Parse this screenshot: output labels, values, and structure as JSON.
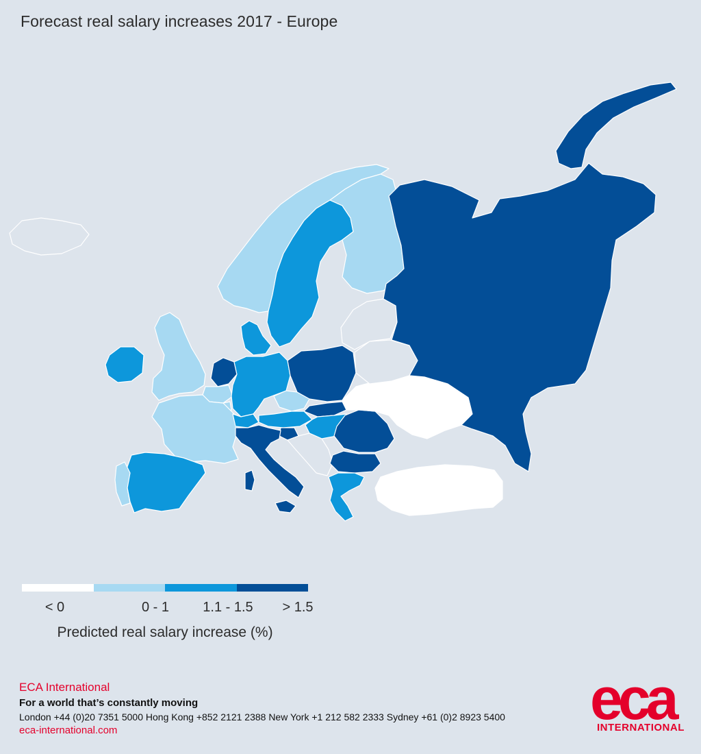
{
  "title": "Forecast real salary increases 2017 - Europe",
  "colors": {
    "background": "#dde4ec",
    "lt0": "#ffffff",
    "0to1": "#a7d9f2",
    "1.1to1.5": "#0d97db",
    "gt1.5": "#034e97",
    "nodata": "#dde4ec",
    "accent": "#e4002b"
  },
  "legend": {
    "caption": "Predicted real salary increase (%)",
    "classes": [
      {
        "label": "< 0",
        "color": "#ffffff"
      },
      {
        "label": "0 - 1",
        "color": "#a7d9f2"
      },
      {
        "label": "1.1 - 1.5",
        "color": "#0d97db"
      },
      {
        "label": "> 1.5",
        "color": "#034e97"
      }
    ]
  },
  "regions": [
    {
      "name": "Iceland",
      "category": "nodata"
    },
    {
      "name": "Norway",
      "category": "0to1"
    },
    {
      "name": "Sweden",
      "category": "1.1to1.5"
    },
    {
      "name": "Finland",
      "category": "0to1"
    },
    {
      "name": "Denmark",
      "category": "1.1to1.5"
    },
    {
      "name": "United Kingdom",
      "category": "0to1"
    },
    {
      "name": "Ireland",
      "category": "1.1to1.5"
    },
    {
      "name": "Netherlands",
      "category": "gt1.5"
    },
    {
      "name": "Belgium",
      "category": "0to1"
    },
    {
      "name": "Luxembourg",
      "category": "0to1"
    },
    {
      "name": "France",
      "category": "0to1"
    },
    {
      "name": "Germany",
      "category": "1.1to1.5"
    },
    {
      "name": "Switzerland",
      "category": "1.1to1.5"
    },
    {
      "name": "Austria",
      "category": "1.1to1.5"
    },
    {
      "name": "Czech Republic",
      "category": "0to1"
    },
    {
      "name": "Poland",
      "category": "gt1.5"
    },
    {
      "name": "Slovakia",
      "category": "gt1.5"
    },
    {
      "name": "Hungary",
      "category": "1.1to1.5"
    },
    {
      "name": "Slovenia",
      "category": "gt1.5"
    },
    {
      "name": "Italy",
      "category": "gt1.5"
    },
    {
      "name": "Spain",
      "category": "1.1to1.5"
    },
    {
      "name": "Portugal",
      "category": "0to1"
    },
    {
      "name": "Romania",
      "category": "gt1.5"
    },
    {
      "name": "Bulgaria",
      "category": "gt1.5"
    },
    {
      "name": "Greece",
      "category": "1.1to1.5"
    },
    {
      "name": "Turkey",
      "category": "lt0"
    },
    {
      "name": "Ukraine",
      "category": "lt0"
    },
    {
      "name": "Belarus",
      "category": "nodata"
    },
    {
      "name": "Baltic States",
      "category": "nodata"
    },
    {
      "name": "Western Balkans",
      "category": "nodata"
    },
    {
      "name": "Russia",
      "category": "gt1.5"
    }
  ],
  "footer": {
    "org": "ECA International",
    "tagline": "For a world that’s constantly moving",
    "phones": "London +44 (0)20 7351 5000  Hong Kong +852 2121 2388  New York +1 212 582 2333  Sydney +61 (0)2 8923 5400",
    "website": "eca-international.com"
  },
  "logo": {
    "mark": "eca",
    "sub": "INTERNATIONAL"
  }
}
